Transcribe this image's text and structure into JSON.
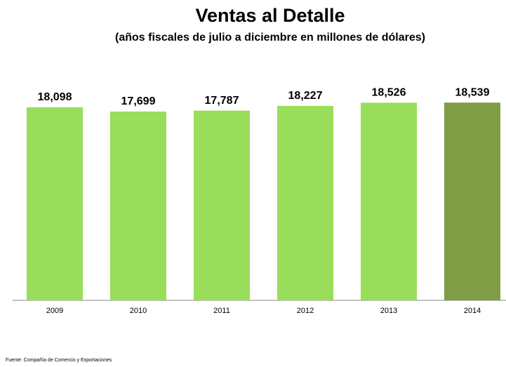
{
  "chart_data": {
    "type": "bar",
    "title": "Ventas al Detalle",
    "subtitle": "(años fiscales  de julio a diciembre en millones de dólares)",
    "categories": [
      "2009",
      "2010",
      "2011",
      "2012",
      "2013",
      "2014"
    ],
    "values": [
      18098,
      17699,
      17787,
      18227,
      18526,
      18539
    ],
    "value_labels": [
      "18,098",
      "17,699",
      "17,787",
      "18,227",
      "18,526",
      "18,539"
    ],
    "colors": [
      "#99dd5a",
      "#99dd5a",
      "#99dd5a",
      "#99dd5a",
      "#99dd5a",
      "#7f9e45"
    ],
    "ylim": [
      0,
      20000
    ],
    "source": "Fuente: Compañía de Comercio y Exportaciones"
  }
}
